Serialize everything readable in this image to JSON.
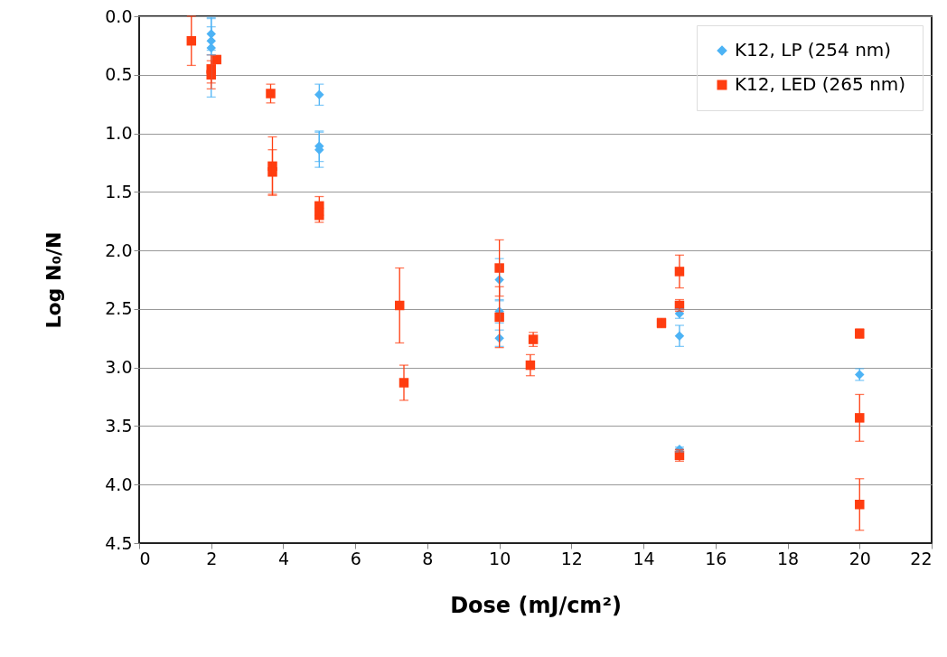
{
  "chart_data": {
    "type": "scatter",
    "xlabel": "Dose (mJ/cm²)",
    "ylabel": "Log N₀/N",
    "xlim": [
      0,
      22
    ],
    "xticks": [
      0,
      2,
      4,
      6,
      8,
      10,
      12,
      14,
      16,
      18,
      20,
      22
    ],
    "ylim": [
      4.5,
      0
    ],
    "yticks": [
      {
        "value": 0,
        "label": "0.0"
      },
      {
        "value": 0.5,
        "label": "0.5"
      },
      {
        "value": 1,
        "label": "1.0"
      },
      {
        "value": 1.5,
        "label": "1.5"
      },
      {
        "value": 2,
        "label": "2.0"
      },
      {
        "value": 2.5,
        "label": "2.5"
      },
      {
        "value": 3,
        "label": "3.0"
      },
      {
        "value": 3.5,
        "label": "3.5"
      },
      {
        "value": 4,
        "label": "4.0"
      },
      {
        "value": 4.5,
        "label": "4.5"
      }
    ],
    "grid": "y",
    "legend": "top right",
    "series": [
      {
        "name": "K12, LP (254 nm)",
        "color": "#4db3f5",
        "marker": "diamond",
        "x": [
          2,
          2,
          2,
          5,
          5,
          5,
          10,
          10,
          10,
          15,
          15,
          15,
          20
        ],
        "values": [
          0.15,
          0.21,
          0.27,
          0.67,
          1.11,
          1.14,
          2.25,
          2.52,
          2.75,
          2.54,
          2.73,
          3.7,
          3.06
        ],
        "errors": [
          0.14,
          0.12,
          [
            0.02,
            0.69
          ],
          0.09,
          0.13,
          0.15,
          0.18,
          0.1,
          0.07,
          0.04,
          0.09,
          0.02,
          0.05
        ]
      },
      {
        "name": "K12, LED (265 nm)",
        "color": "#ff3d10",
        "marker": "square",
        "x": [
          1.45,
          2,
          2,
          2.15,
          3.65,
          3.7,
          3.7,
          5,
          5,
          7.23,
          7.35,
          10,
          10,
          10.94,
          10.86,
          14.5,
          15,
          15,
          15,
          20,
          20,
          20
        ],
        "values": [
          0.21,
          0.45,
          0.5,
          0.37,
          0.66,
          1.28,
          1.33,
          1.62,
          1.7,
          2.47,
          3.13,
          2.15,
          2.57,
          2.76,
          2.98,
          2.62,
          2.18,
          2.47,
          3.75,
          2.71,
          3.43,
          4.17
        ],
        "errors": [
          0.21,
          0.12,
          0.12,
          0.02,
          0.08,
          0.25,
          0.19,
          0.08,
          0.06,
          0.32,
          0.15,
          0.24,
          0.26,
          0.06,
          0.09,
          0.04,
          0.14,
          0.05,
          0.05,
          0.04,
          0.2,
          0.22
        ]
      }
    ]
  }
}
